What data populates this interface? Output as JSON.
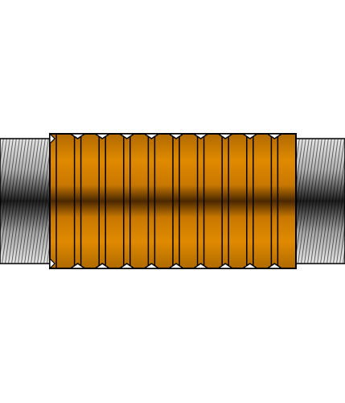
{
  "figure": {
    "subject": "threaded-coupling",
    "band_count": 10
  },
  "colors": {
    "background": "#ffffff",
    "outline": "#000000",
    "copper_light": "#e68c00",
    "copper_mid": "#c57600",
    "copper_dark": "#4a2800",
    "thread_light": "#e8e8e8",
    "thread_mid": "#9a9a9a",
    "thread_dark": "#1e1e1e"
  }
}
